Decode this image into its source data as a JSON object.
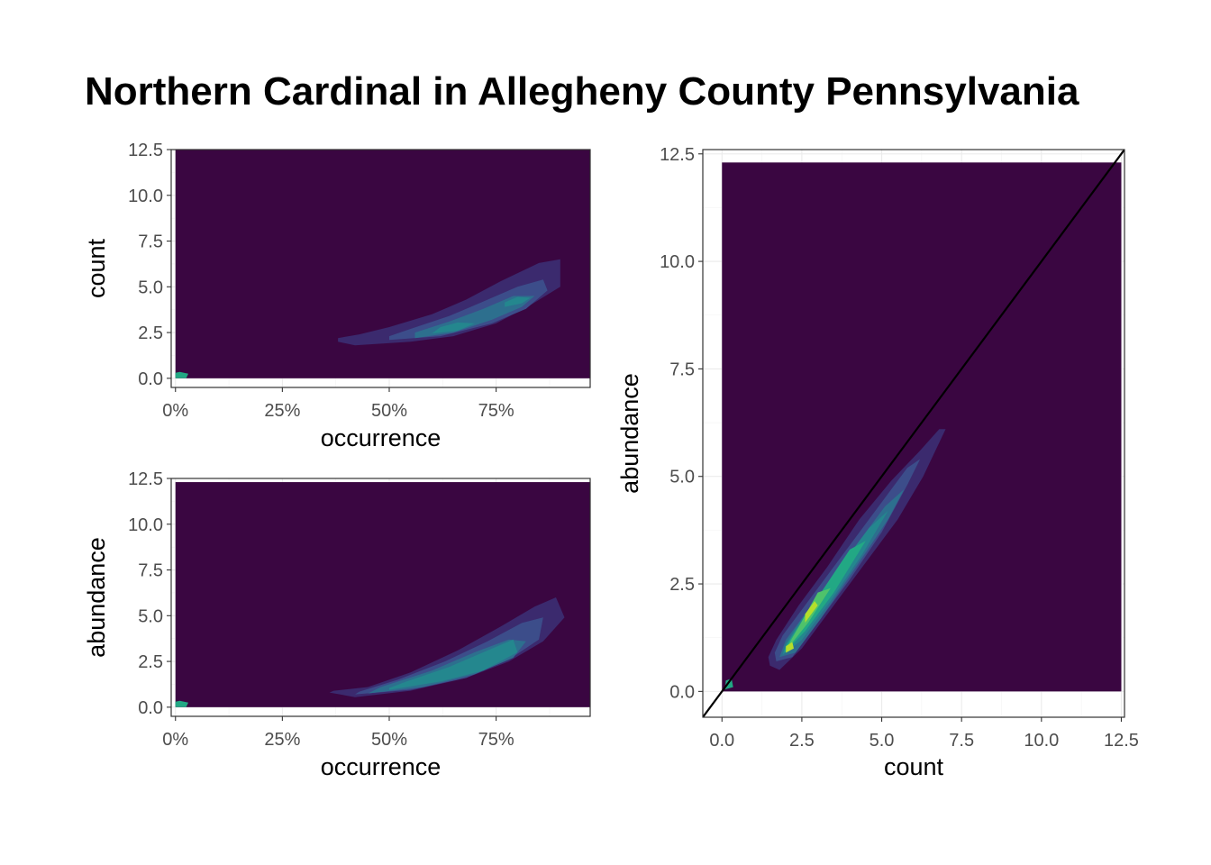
{
  "title": "Northern Cardinal in Allegheny County Pennsylvania",
  "colors": {
    "background_density": "#3a0641",
    "contour_levels": [
      "#3a0641",
      "#3b2a6e",
      "#3c4d8a",
      "#2d6f8e",
      "#24878e",
      "#22a884",
      "#4fc26b",
      "#b5de2b",
      "#fde725"
    ],
    "panel_border": "#333333",
    "grid": "#ebebeb",
    "identity_line": "#000000"
  },
  "chart_data": [
    {
      "id": "count_vs_occurrence",
      "type": "heatmap",
      "subtype": "2d-density-filled-contour",
      "xlabel": "occurrence",
      "ylabel": "count",
      "xlim": [
        -0.01,
        0.97
      ],
      "ylim": [
        -0.5,
        12.5
      ],
      "x_ticks": [
        0,
        0.25,
        0.5,
        0.75
      ],
      "x_tick_labels": [
        "0%",
        "25%",
        "50%",
        "75%"
      ],
      "y_ticks": [
        0,
        2.5,
        5,
        7.5,
        10,
        12.5
      ],
      "y_tick_labels": [
        "0.0",
        "2.5",
        "5.0",
        "7.5",
        "10.0",
        "12.5"
      ],
      "density_extent": {
        "x": [
          0,
          0.97
        ],
        "y": [
          0,
          12.5
        ]
      },
      "contours": [
        {
          "level": 1,
          "points": [
            [
              0.38,
              2.0
            ],
            [
              0.42,
              1.8
            ],
            [
              0.55,
              2.0
            ],
            [
              0.65,
              2.3
            ],
            [
              0.75,
              3.0
            ],
            [
              0.83,
              4.0
            ],
            [
              0.9,
              5.0
            ],
            [
              0.9,
              6.5
            ],
            [
              0.85,
              6.3
            ],
            [
              0.76,
              5.3
            ],
            [
              0.68,
              4.3
            ],
            [
              0.6,
              3.5
            ],
            [
              0.5,
              2.8
            ],
            [
              0.43,
              2.4
            ],
            [
              0.38,
              2.2
            ]
          ]
        },
        {
          "level": 2,
          "points": [
            [
              0.5,
              2.1
            ],
            [
              0.62,
              2.3
            ],
            [
              0.74,
              3.0
            ],
            [
              0.82,
              3.8
            ],
            [
              0.87,
              4.8
            ],
            [
              0.86,
              5.4
            ],
            [
              0.8,
              5.0
            ],
            [
              0.72,
              4.2
            ],
            [
              0.64,
              3.4
            ],
            [
              0.55,
              2.7
            ],
            [
              0.5,
              2.3
            ]
          ]
        },
        {
          "level": 3,
          "points": [
            [
              0.56,
              2.2
            ],
            [
              0.65,
              2.5
            ],
            [
              0.74,
              3.2
            ],
            [
              0.81,
              3.9
            ],
            [
              0.84,
              4.5
            ],
            [
              0.79,
              4.5
            ],
            [
              0.72,
              3.8
            ],
            [
              0.64,
              3.1
            ],
            [
              0.56,
              2.5
            ]
          ]
        },
        {
          "level": 4,
          "points": [
            [
              0.6,
              2.45
            ],
            [
              0.66,
              2.6
            ],
            [
              0.7,
              3.0
            ],
            [
              0.66,
              3.05
            ],
            [
              0.62,
              2.8
            ]
          ]
        },
        {
          "level": 4,
          "points": [
            [
              0.77,
              3.9
            ],
            [
              0.81,
              4.1
            ],
            [
              0.83,
              4.4
            ],
            [
              0.8,
              4.45
            ],
            [
              0.77,
              4.15
            ]
          ]
        },
        {
          "level": 5,
          "points": [
            [
              0.0,
              0.0
            ],
            [
              0.025,
              0.0
            ],
            [
              0.03,
              0.25
            ],
            [
              0.01,
              0.35
            ],
            [
              0.0,
              0.3
            ]
          ]
        }
      ]
    },
    {
      "id": "abundance_vs_occurrence",
      "type": "heatmap",
      "subtype": "2d-density-filled-contour",
      "xlabel": "occurrence",
      "ylabel": "abundance",
      "xlim": [
        -0.01,
        0.97
      ],
      "ylim": [
        -0.5,
        12.5
      ],
      "x_ticks": [
        0,
        0.25,
        0.5,
        0.75
      ],
      "x_tick_labels": [
        "0%",
        "25%",
        "50%",
        "75%"
      ],
      "y_ticks": [
        0,
        2.5,
        5,
        7.5,
        10,
        12.5
      ],
      "y_tick_labels": [
        "0.0",
        "2.5",
        "5.0",
        "7.5",
        "10.0",
        "12.5"
      ],
      "density_extent": {
        "x": [
          0,
          0.97
        ],
        "y": [
          0,
          12.3
        ]
      },
      "contours": [
        {
          "level": 1,
          "points": [
            [
              0.36,
              0.8
            ],
            [
              0.42,
              0.55
            ],
            [
              0.55,
              0.9
            ],
            [
              0.68,
              1.6
            ],
            [
              0.78,
              2.5
            ],
            [
              0.86,
              3.6
            ],
            [
              0.91,
              4.9
            ],
            [
              0.89,
              6.0
            ],
            [
              0.84,
              5.5
            ],
            [
              0.76,
              4.4
            ],
            [
              0.66,
              3.1
            ],
            [
              0.55,
              1.9
            ],
            [
              0.45,
              1.1
            ],
            [
              0.37,
              0.9
            ]
          ]
        },
        {
          "level": 2,
          "points": [
            [
              0.42,
              0.7
            ],
            [
              0.55,
              0.95
            ],
            [
              0.68,
              1.6
            ],
            [
              0.78,
              2.6
            ],
            [
              0.85,
              3.7
            ],
            [
              0.86,
              4.9
            ],
            [
              0.81,
              4.6
            ],
            [
              0.73,
              3.6
            ],
            [
              0.63,
              2.5
            ],
            [
              0.52,
              1.5
            ],
            [
              0.43,
              0.85
            ]
          ]
        },
        {
          "level": 3,
          "points": [
            [
              0.45,
              0.75
            ],
            [
              0.58,
              1.1
            ],
            [
              0.7,
              1.8
            ],
            [
              0.79,
              2.7
            ],
            [
              0.82,
              3.6
            ],
            [
              0.78,
              3.7
            ],
            [
              0.7,
              3.0
            ],
            [
              0.6,
              2.0
            ],
            [
              0.48,
              1.1
            ]
          ]
        },
        {
          "level": 4,
          "points": [
            [
              0.5,
              0.95
            ],
            [
              0.62,
              1.4
            ],
            [
              0.72,
              2.0
            ],
            [
              0.8,
              3.0
            ],
            [
              0.79,
              3.7
            ],
            [
              0.73,
              3.1
            ],
            [
              0.64,
              2.2
            ],
            [
              0.54,
              1.4
            ],
            [
              0.5,
              1.05
            ]
          ]
        },
        {
          "level": 5,
          "points": [
            [
              0.0,
              0.0
            ],
            [
              0.025,
              0.0
            ],
            [
              0.03,
              0.25
            ],
            [
              0.01,
              0.35
            ],
            [
              0.0,
              0.3
            ]
          ]
        }
      ]
    },
    {
      "id": "abundance_vs_count",
      "type": "heatmap",
      "subtype": "2d-density-filled-contour",
      "xlabel": "count",
      "ylabel": "abundance",
      "xlim": [
        -0.6,
        12.6
      ],
      "ylim": [
        -0.6,
        12.6
      ],
      "x_ticks": [
        0,
        2.5,
        5,
        7.5,
        10,
        12.5
      ],
      "x_tick_labels": [
        "0.0",
        "2.5",
        "5.0",
        "7.5",
        "10.0",
        "12.5"
      ],
      "y_ticks": [
        0,
        2.5,
        5,
        7.5,
        10,
        12.5
      ],
      "y_tick_labels": [
        "0.0",
        "2.5",
        "5.0",
        "7.5",
        "10.0",
        "12.5"
      ],
      "density_extent": {
        "x": [
          0,
          12.5
        ],
        "y": [
          0,
          12.3
        ]
      },
      "identity_line": {
        "from": [
          -0.6,
          -0.6
        ],
        "to": [
          12.6,
          12.6
        ]
      },
      "contours": [
        {
          "level": 1,
          "points": [
            [
              1.5,
              0.6
            ],
            [
              1.8,
              0.5
            ],
            [
              2.5,
              1.0
            ],
            [
              3.5,
              2.0
            ],
            [
              4.5,
              3.0
            ],
            [
              5.5,
              4.0
            ],
            [
              6.3,
              5.0
            ],
            [
              7.0,
              6.1
            ],
            [
              6.8,
              6.1
            ],
            [
              6.2,
              5.6
            ],
            [
              5.3,
              4.9
            ],
            [
              4.3,
              4.0
            ],
            [
              3.3,
              2.9
            ],
            [
              2.4,
              2.0
            ],
            [
              1.7,
              1.2
            ],
            [
              1.45,
              0.8
            ]
          ]
        },
        {
          "level": 2,
          "points": [
            [
              1.7,
              0.7
            ],
            [
              2.2,
              0.8
            ],
            [
              3.0,
              1.6
            ],
            [
              4.0,
              2.6
            ],
            [
              5.0,
              3.7
            ],
            [
              5.8,
              4.8
            ],
            [
              6.2,
              5.4
            ],
            [
              5.8,
              5.2
            ],
            [
              4.8,
              4.2
            ],
            [
              3.7,
              3.1
            ],
            [
              2.7,
              2.1
            ],
            [
              1.9,
              1.3
            ],
            [
              1.65,
              0.9
            ]
          ]
        },
        {
          "level": 3,
          "points": [
            [
              1.8,
              0.8
            ],
            [
              2.3,
              0.9
            ],
            [
              3.1,
              1.7
            ],
            [
              4.2,
              2.9
            ],
            [
              5.2,
              4.0
            ],
            [
              5.7,
              4.7
            ],
            [
              5.1,
              4.3
            ],
            [
              4.0,
              3.2
            ],
            [
              2.9,
              2.1
            ],
            [
              2.0,
              1.2
            ]
          ]
        },
        {
          "level": 4,
          "points": [
            [
              1.9,
              0.85
            ],
            [
              2.5,
              1.2
            ],
            [
              3.4,
              2.1
            ],
            [
              4.4,
              3.2
            ],
            [
              5.2,
              4.2
            ],
            [
              4.6,
              3.8
            ],
            [
              3.6,
              2.8
            ],
            [
              2.6,
              1.8
            ],
            [
              2.0,
              1.1
            ]
          ]
        },
        {
          "level": 5,
          "points": [
            [
              1.95,
              0.9
            ],
            [
              2.6,
              1.4
            ],
            [
              3.5,
              2.3
            ],
            [
              4.5,
              3.5
            ],
            [
              4.0,
              3.3
            ],
            [
              3.1,
              2.3
            ],
            [
              2.3,
              1.4
            ],
            [
              2.0,
              1.05
            ]
          ]
        },
        {
          "level": 6,
          "points": [
            [
              2.0,
              0.95
            ],
            [
              2.7,
              1.6
            ],
            [
              3.4,
              2.4
            ],
            [
              3.0,
              2.3
            ],
            [
              2.4,
              1.5
            ],
            [
              2.05,
              1.05
            ]
          ]
        },
        {
          "level": 7,
          "points": [
            [
              2.0,
              0.9
            ],
            [
              2.25,
              1.0
            ],
            [
              2.2,
              1.15
            ],
            [
              2.0,
              1.05
            ]
          ]
        },
        {
          "level": 7,
          "points": [
            [
              2.6,
              1.6
            ],
            [
              3.0,
              2.0
            ],
            [
              2.9,
              2.1
            ],
            [
              2.6,
              1.8
            ]
          ]
        },
        {
          "level": 5,
          "points": [
            [
              0.1,
              0.05
            ],
            [
              0.35,
              0.1
            ],
            [
              0.3,
              0.3
            ],
            [
              0.12,
              0.25
            ]
          ]
        }
      ]
    }
  ]
}
